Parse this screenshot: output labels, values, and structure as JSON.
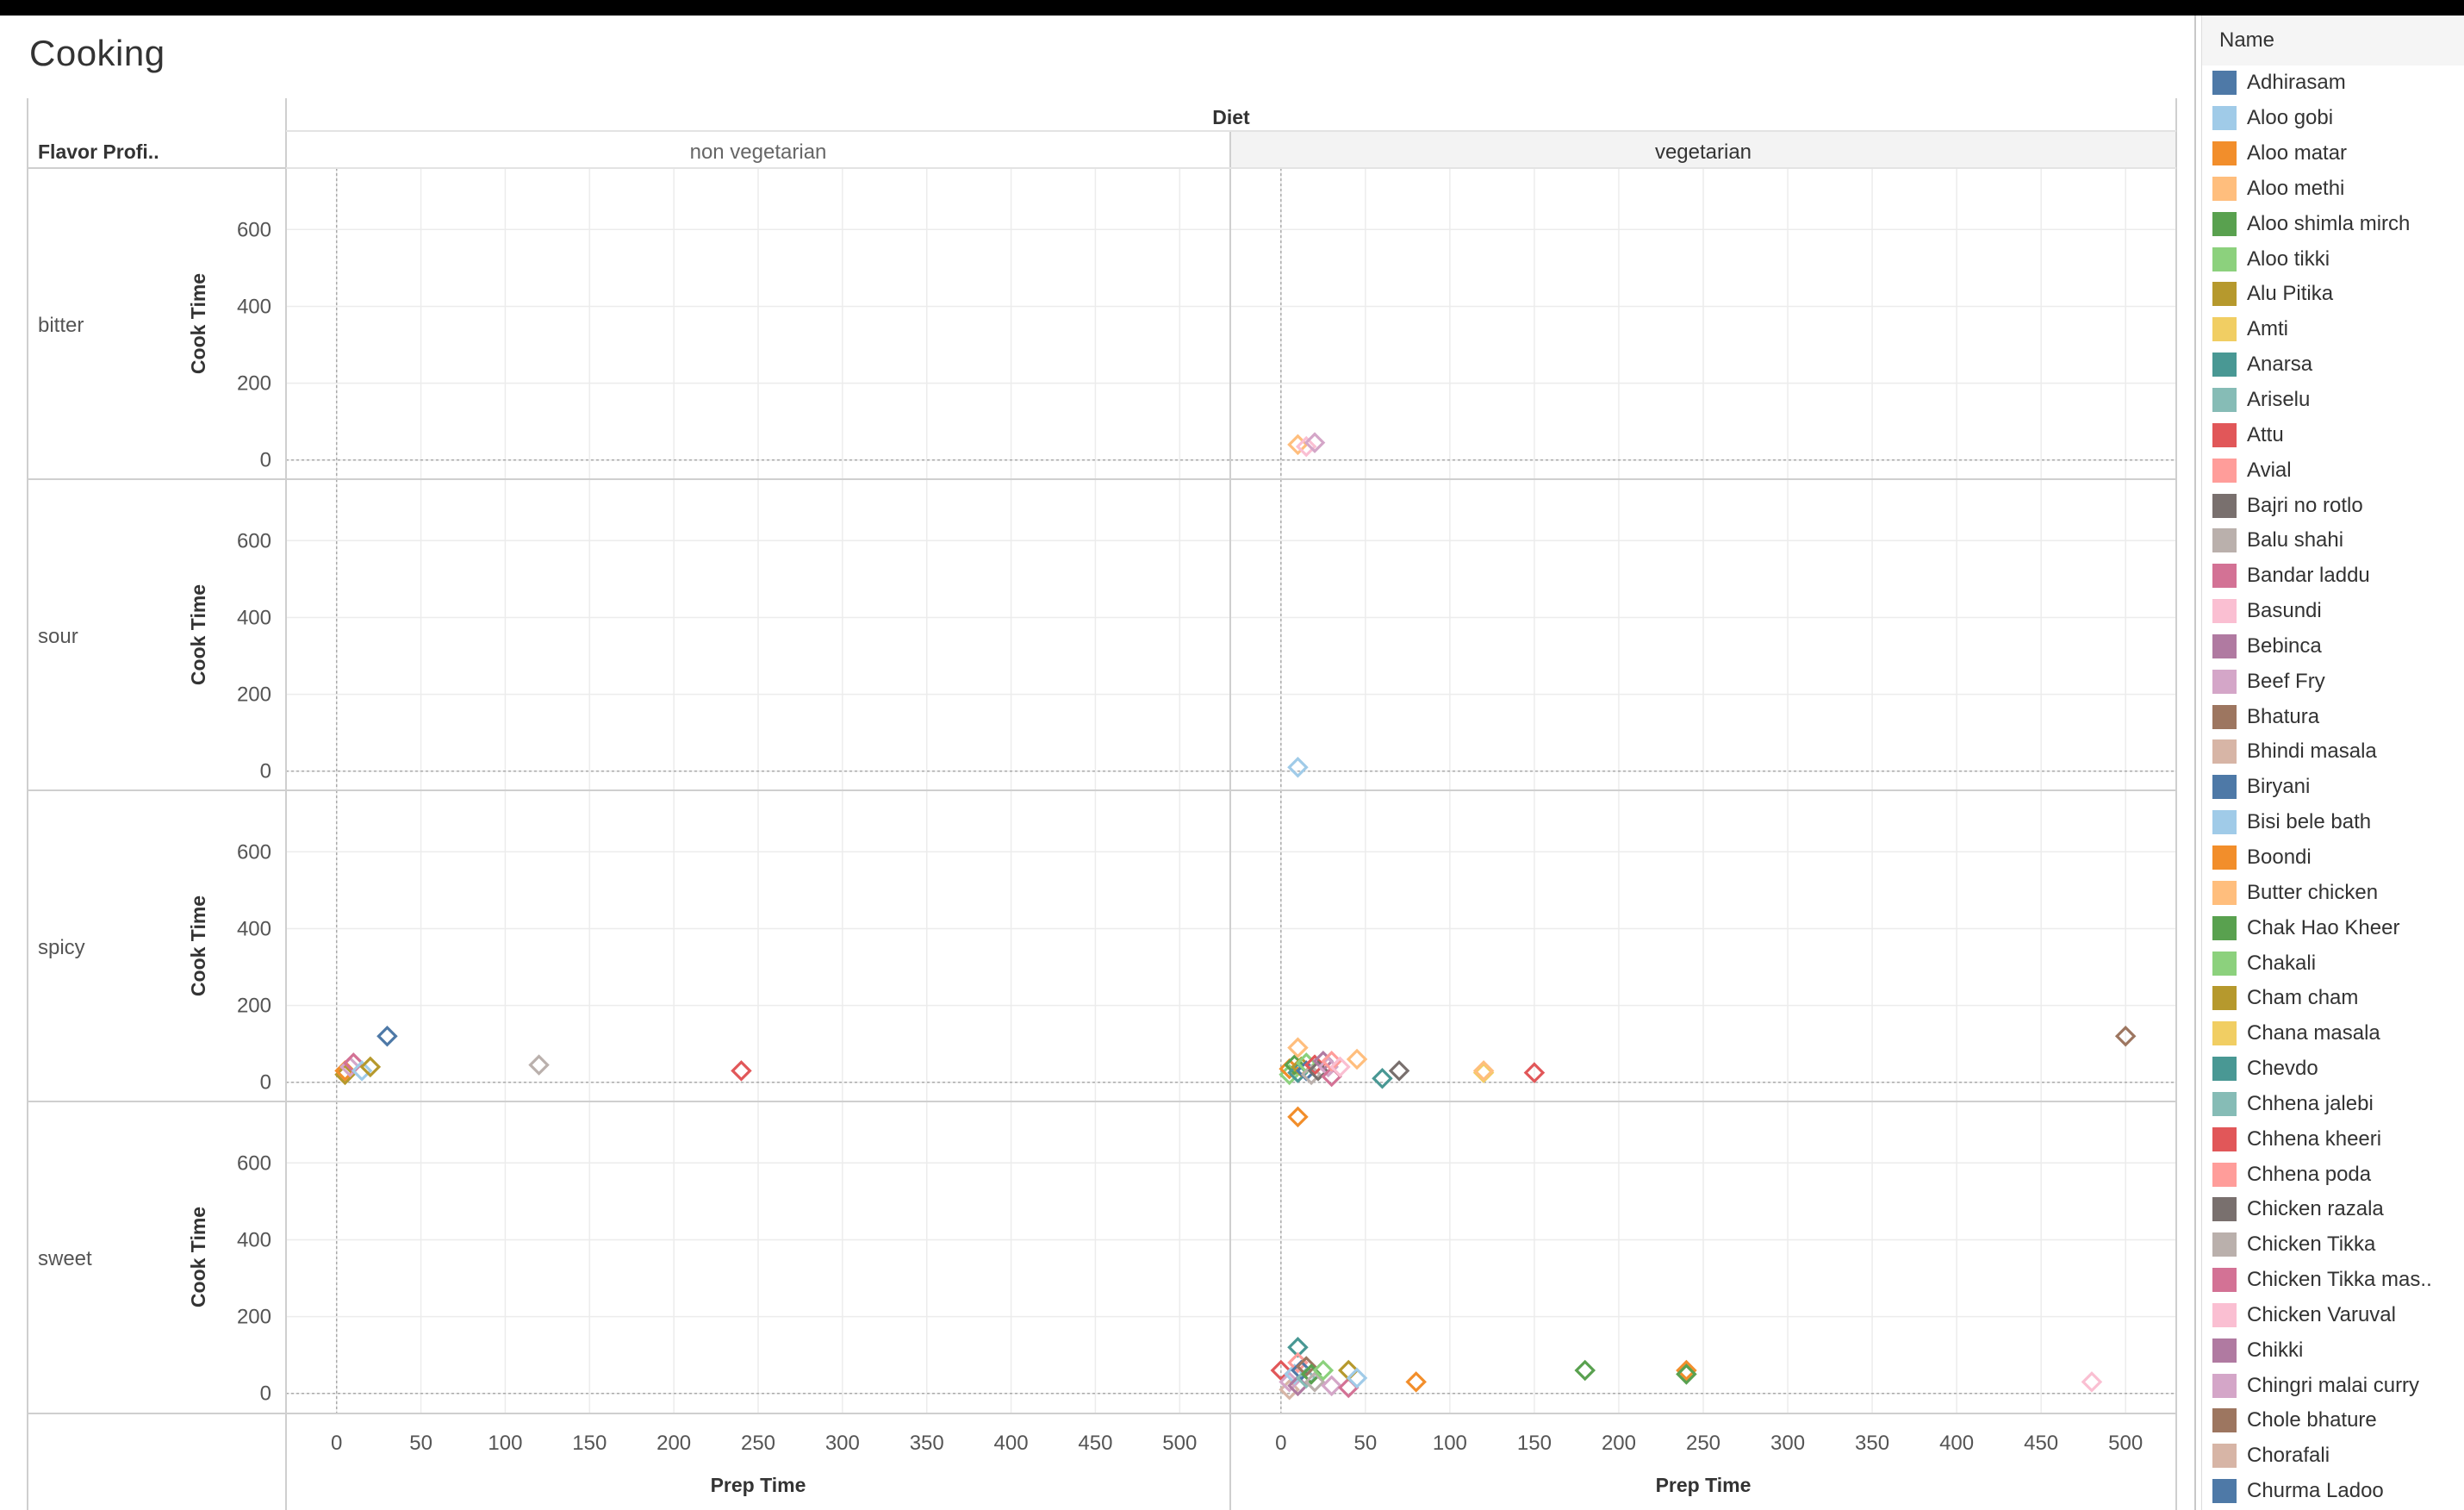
{
  "sheet": {
    "title": "Cooking",
    "row_header_label": "Flavor Profi..",
    "column_header_label": "Diet"
  },
  "legend": {
    "title": "Name",
    "items": [
      {
        "label": "Adhirasam",
        "color": "#4e79a7"
      },
      {
        "label": "Aloo gobi",
        "color": "#a0cbe8"
      },
      {
        "label": "Aloo matar",
        "color": "#f28e2b"
      },
      {
        "label": "Aloo methi",
        "color": "#ffbe7d"
      },
      {
        "label": "Aloo shimla mirch",
        "color": "#59a14f"
      },
      {
        "label": "Aloo tikki",
        "color": "#8cd17d"
      },
      {
        "label": "Alu Pitika",
        "color": "#b6992d"
      },
      {
        "label": "Amti",
        "color": "#f1ce63"
      },
      {
        "label": "Anarsa",
        "color": "#499894"
      },
      {
        "label": "Ariselu",
        "color": "#86bcb6"
      },
      {
        "label": "Attu",
        "color": "#e15759"
      },
      {
        "label": "Avial",
        "color": "#ff9d9a"
      },
      {
        "label": "Bajri no rotlo",
        "color": "#79706e"
      },
      {
        "label": "Balu shahi",
        "color": "#bab0ac"
      },
      {
        "label": "Bandar laddu",
        "color": "#d37295"
      },
      {
        "label": "Basundi",
        "color": "#fabfd2"
      },
      {
        "label": "Bebinca",
        "color": "#b07aa1"
      },
      {
        "label": "Beef Fry",
        "color": "#d4a6c8"
      },
      {
        "label": "Bhatura",
        "color": "#9d7660"
      },
      {
        "label": "Bhindi masala",
        "color": "#d7b5a6"
      },
      {
        "label": "Biryani",
        "color": "#4e79a7"
      },
      {
        "label": "Bisi bele bath",
        "color": "#a0cbe8"
      },
      {
        "label": "Boondi",
        "color": "#f28e2b"
      },
      {
        "label": "Butter chicken",
        "color": "#ffbe7d"
      },
      {
        "label": "Chak Hao Kheer",
        "color": "#59a14f"
      },
      {
        "label": "Chakali",
        "color": "#8cd17d"
      },
      {
        "label": "Cham cham",
        "color": "#b6992d"
      },
      {
        "label": "Chana masala",
        "color": "#f1ce63"
      },
      {
        "label": "Chevdo",
        "color": "#499894"
      },
      {
        "label": "Chhena jalebi",
        "color": "#86bcb6"
      },
      {
        "label": "Chhena kheeri",
        "color": "#e15759"
      },
      {
        "label": "Chhena poda",
        "color": "#ff9d9a"
      },
      {
        "label": "Chicken razala",
        "color": "#79706e"
      },
      {
        "label": "Chicken Tikka",
        "color": "#bab0ac"
      },
      {
        "label": "Chicken Tikka mas..",
        "color": "#d37295"
      },
      {
        "label": "Chicken Varuval",
        "color": "#fabfd2"
      },
      {
        "label": "Chikki",
        "color": "#b07aa1"
      },
      {
        "label": "Chingri malai curry",
        "color": "#d4a6c8"
      },
      {
        "label": "Chole bhature",
        "color": "#9d7660"
      },
      {
        "label": "Chorafali",
        "color": "#d7b5a6"
      },
      {
        "label": "Churma Ladoo",
        "color": "#4e79a7"
      }
    ]
  },
  "chart_data": {
    "type": "scatter",
    "title": "Cooking",
    "xlabel": "Prep Time",
    "ylabel": "Cook Time",
    "xlim": [
      -30,
      530
    ],
    "ylim": [
      -50,
      760
    ],
    "x_ticks": [
      0,
      50,
      100,
      150,
      200,
      250,
      300,
      350,
      400,
      450,
      500
    ],
    "y_ticks": [
      0,
      200,
      400,
      600
    ],
    "grid": true,
    "legend_position": "right",
    "marker": "hollow-diamond",
    "columns": [
      {
        "key": "non_veg",
        "label": "non vegetarian"
      },
      {
        "key": "veg",
        "label": "vegetarian"
      }
    ],
    "rows": [
      {
        "key": "bitter",
        "label": "bitter"
      },
      {
        "key": "sour",
        "label": "sour"
      },
      {
        "key": "spicy",
        "label": "spicy"
      },
      {
        "key": "sweet",
        "label": "sweet"
      }
    ],
    "points": [
      {
        "row": "bitter",
        "col": "veg",
        "x": 10,
        "y": 40,
        "color": "#ffbe7d"
      },
      {
        "row": "bitter",
        "col": "veg",
        "x": 15,
        "y": 35,
        "color": "#fabfd2"
      },
      {
        "row": "bitter",
        "col": "veg",
        "x": 20,
        "y": 45,
        "color": "#d4a6c8"
      },
      {
        "row": "sour",
        "col": "veg",
        "x": 10,
        "y": 10,
        "color": "#a0cbe8"
      },
      {
        "row": "spicy",
        "col": "non_veg",
        "x": 5,
        "y": 20,
        "color": "#b6992d"
      },
      {
        "row": "spicy",
        "col": "non_veg",
        "x": 5,
        "y": 30,
        "color": "#f28e2b"
      },
      {
        "row": "spicy",
        "col": "non_veg",
        "x": 8,
        "y": 40,
        "color": "#d4a6c8"
      },
      {
        "row": "spicy",
        "col": "non_veg",
        "x": 10,
        "y": 50,
        "color": "#d37295"
      },
      {
        "row": "spicy",
        "col": "non_veg",
        "x": 15,
        "y": 30,
        "color": "#a0cbe8"
      },
      {
        "row": "spicy",
        "col": "non_veg",
        "x": 20,
        "y": 40,
        "color": "#b6992d"
      },
      {
        "row": "spicy",
        "col": "non_veg",
        "x": 30,
        "y": 120,
        "color": "#4e79a7"
      },
      {
        "row": "spicy",
        "col": "non_veg",
        "x": 120,
        "y": 45,
        "color": "#bab0ac"
      },
      {
        "row": "spicy",
        "col": "non_veg",
        "x": 240,
        "y": 30,
        "color": "#e15759"
      },
      {
        "row": "spicy",
        "col": "veg",
        "x": 5,
        "y": 20,
        "color": "#8cd17d"
      },
      {
        "row": "spicy",
        "col": "veg",
        "x": 5,
        "y": 35,
        "color": "#f28e2b"
      },
      {
        "row": "spicy",
        "col": "veg",
        "x": 8,
        "y": 45,
        "color": "#59a14f"
      },
      {
        "row": "spicy",
        "col": "veg",
        "x": 10,
        "y": 90,
        "color": "#ffbe7d"
      },
      {
        "row": "spicy",
        "col": "veg",
        "x": 10,
        "y": 25,
        "color": "#499894"
      },
      {
        "row": "spicy",
        "col": "veg",
        "x": 12,
        "y": 40,
        "color": "#b6992d"
      },
      {
        "row": "spicy",
        "col": "veg",
        "x": 15,
        "y": 30,
        "color": "#4e79a7"
      },
      {
        "row": "spicy",
        "col": "veg",
        "x": 15,
        "y": 50,
        "color": "#8cd17d"
      },
      {
        "row": "spicy",
        "col": "veg",
        "x": 18,
        "y": 20,
        "color": "#bab0ac"
      },
      {
        "row": "spicy",
        "col": "veg",
        "x": 20,
        "y": 45,
        "color": "#e15759"
      },
      {
        "row": "spicy",
        "col": "veg",
        "x": 22,
        "y": 30,
        "color": "#79706e"
      },
      {
        "row": "spicy",
        "col": "veg",
        "x": 25,
        "y": 55,
        "color": "#b07aa1"
      },
      {
        "row": "spicy",
        "col": "veg",
        "x": 28,
        "y": 40,
        "color": "#d4a6c8"
      },
      {
        "row": "spicy",
        "col": "veg",
        "x": 30,
        "y": 15,
        "color": "#d37295"
      },
      {
        "row": "spicy",
        "col": "veg",
        "x": 30,
        "y": 55,
        "color": "#ff9d9a"
      },
      {
        "row": "spicy",
        "col": "veg",
        "x": 35,
        "y": 40,
        "color": "#fabfd2"
      },
      {
        "row": "spicy",
        "col": "veg",
        "x": 45,
        "y": 60,
        "color": "#ffbe7d"
      },
      {
        "row": "spicy",
        "col": "veg",
        "x": 60,
        "y": 10,
        "color": "#499894"
      },
      {
        "row": "spicy",
        "col": "veg",
        "x": 70,
        "y": 30,
        "color": "#79706e"
      },
      {
        "row": "spicy",
        "col": "veg",
        "x": 120,
        "y": 25,
        "color": "#f1ce63"
      },
      {
        "row": "spicy",
        "col": "veg",
        "x": 120,
        "y": 30,
        "color": "#ffbe7d"
      },
      {
        "row": "spicy",
        "col": "veg",
        "x": 150,
        "y": 25,
        "color": "#e15759"
      },
      {
        "row": "spicy",
        "col": "veg",
        "x": 500,
        "y": 120,
        "color": "#9d7660"
      },
      {
        "row": "sweet",
        "col": "veg",
        "x": 0,
        "y": 60,
        "color": "#e15759"
      },
      {
        "row": "sweet",
        "col": "veg",
        "x": 5,
        "y": 10,
        "color": "#d7b5a6"
      },
      {
        "row": "sweet",
        "col": "veg",
        "x": 5,
        "y": 30,
        "color": "#d4a6c8"
      },
      {
        "row": "sweet",
        "col": "veg",
        "x": 8,
        "y": 50,
        "color": "#a0cbe8"
      },
      {
        "row": "sweet",
        "col": "veg",
        "x": 10,
        "y": 120,
        "color": "#499894"
      },
      {
        "row": "sweet",
        "col": "veg",
        "x": 10,
        "y": 20,
        "color": "#b07aa1"
      },
      {
        "row": "sweet",
        "col": "veg",
        "x": 10,
        "y": 80,
        "color": "#ff9d9a"
      },
      {
        "row": "sweet",
        "col": "veg",
        "x": 12,
        "y": 60,
        "color": "#4e79a7"
      },
      {
        "row": "sweet",
        "col": "veg",
        "x": 15,
        "y": 40,
        "color": "#86bcb6"
      },
      {
        "row": "sweet",
        "col": "veg",
        "x": 15,
        "y": 70,
        "color": "#9d7660"
      },
      {
        "row": "sweet",
        "col": "veg",
        "x": 18,
        "y": 50,
        "color": "#59a14f"
      },
      {
        "row": "sweet",
        "col": "veg",
        "x": 20,
        "y": 30,
        "color": "#bab0ac"
      },
      {
        "row": "sweet",
        "col": "veg",
        "x": 25,
        "y": 60,
        "color": "#8cd17d"
      },
      {
        "row": "sweet",
        "col": "veg",
        "x": 30,
        "y": 20,
        "color": "#d4a6c8"
      },
      {
        "row": "sweet",
        "col": "veg",
        "x": 40,
        "y": 15,
        "color": "#d37295"
      },
      {
        "row": "sweet",
        "col": "veg",
        "x": 40,
        "y": 60,
        "color": "#b6992d"
      },
      {
        "row": "sweet",
        "col": "veg",
        "x": 45,
        "y": 40,
        "color": "#a0cbe8"
      },
      {
        "row": "sweet",
        "col": "veg",
        "x": 80,
        "y": 30,
        "color": "#f28e2b"
      },
      {
        "row": "sweet",
        "col": "veg",
        "x": 180,
        "y": 60,
        "color": "#59a14f"
      },
      {
        "row": "sweet",
        "col": "veg",
        "x": 240,
        "y": 60,
        "color": "#f28e2b"
      },
      {
        "row": "sweet",
        "col": "veg",
        "x": 240,
        "y": 50,
        "color": "#59a14f"
      },
      {
        "row": "sweet",
        "col": "veg",
        "x": 480,
        "y": 30,
        "color": "#fabfd2"
      },
      {
        "row": "sweet",
        "col": "veg",
        "x": 10,
        "y": 720,
        "color": "#f28e2b"
      }
    ]
  }
}
